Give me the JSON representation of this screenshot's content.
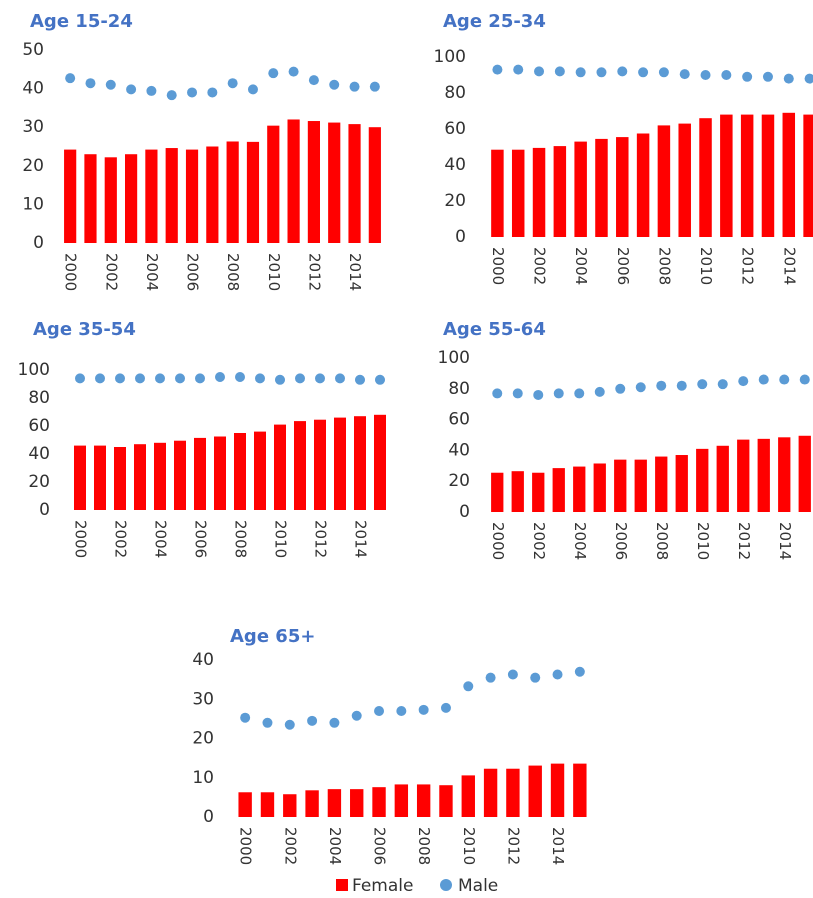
{
  "chart_data": [
    {
      "type": "bar_dot",
      "title": "Age 15-24",
      "categories": [
        "2000",
        null,
        "2002",
        null,
        "2004",
        null,
        "2006",
        null,
        "2008",
        null,
        "2010",
        null,
        "2012",
        null,
        "2014",
        null
      ],
      "series": [
        {
          "color": "#ff0000",
          "values": [
            24.2,
            23,
            22.2,
            23,
            24.2,
            24.6,
            24.2,
            25,
            26.3,
            26.2,
            30.4,
            32,
            31.6,
            31.2,
            30.8,
            30.0
          ]
        },
        {
          "color": "#5b9bd5",
          "values": [
            42.7,
            41.4,
            41,
            39.8,
            39.4,
            38.3,
            39,
            39,
            41.4,
            39.8,
            44,
            44.4,
            42.2,
            41,
            40.5,
            40.5
          ]
        }
      ],
      "ylim": [
        0,
        50
      ],
      "yticks": [
        0,
        10,
        20,
        30,
        40,
        50
      ]
    },
    {
      "type": "bar_dot",
      "title": "Age 25-34",
      "categories": [
        "2000",
        null,
        "2002",
        null,
        "2004",
        null,
        "2006",
        null,
        "2008",
        null,
        "2010",
        null,
        "2012",
        null,
        "2014",
        null
      ],
      "series": [
        {
          "color": "#ff0000",
          "values": [
            48.5,
            48.5,
            49.5,
            50.5,
            53,
            54.5,
            55.5,
            57.5,
            62,
            63,
            66,
            68,
            68,
            68,
            69,
            68
          ]
        },
        {
          "color": "#5b9bd5",
          "values": [
            93,
            93,
            92,
            92,
            91.5,
            91.5,
            92,
            91.5,
            91.5,
            90.5,
            90,
            90,
            89,
            89,
            88,
            88
          ]
        }
      ],
      "ylim": [
        0,
        100
      ],
      "yticks": [
        0,
        20,
        40,
        60,
        80,
        100
      ]
    },
    {
      "type": "bar_dot",
      "title": "Age 35-54",
      "categories": [
        "2000",
        null,
        "2002",
        null,
        "2004",
        null,
        "2006",
        null,
        "2008",
        null,
        "2010",
        null,
        "2012",
        null,
        "2014",
        null
      ],
      "series": [
        {
          "color": "#ff0000",
          "values": [
            46,
            46,
            45,
            47,
            48,
            49.5,
            51.5,
            52.5,
            55,
            56,
            61,
            63.5,
            64.5,
            66,
            67,
            68
          ]
        },
        {
          "color": "#5b9bd5",
          "values": [
            94,
            94,
            94,
            94,
            94,
            94,
            94,
            95,
            95,
            94,
            93,
            94,
            94,
            94,
            93,
            93
          ]
        }
      ],
      "ylim": [
        0,
        100
      ],
      "yticks": [
        0,
        20,
        40,
        60,
        80,
        100
      ]
    },
    {
      "type": "bar_dot",
      "title": "Age 55-64",
      "categories": [
        "2000",
        null,
        "2002",
        null,
        "2004",
        null,
        "2006",
        null,
        "2008",
        null,
        "2010",
        null,
        "2012",
        null,
        "2014",
        null
      ],
      "series": [
        {
          "color": "#ff0000",
          "values": [
            25.5,
            26.5,
            25.5,
            28.5,
            29.5,
            31.5,
            34,
            34,
            36,
            37,
            41,
            43,
            47,
            47.5,
            48.5,
            49.5
          ]
        },
        {
          "color": "#5b9bd5",
          "values": [
            77,
            77,
            76,
            77,
            77,
            78,
            80,
            81,
            82,
            82,
            83,
            83,
            85,
            86,
            86,
            86
          ]
        }
      ],
      "ylim": [
        0,
        100
      ],
      "yticks": [
        0,
        20,
        40,
        60,
        80,
        100
      ]
    },
    {
      "type": "bar_dot",
      "title": "Age 65+",
      "categories": [
        "2000",
        null,
        "2002",
        null,
        "2004",
        null,
        "2006",
        null,
        "2008",
        null,
        "2010",
        null,
        "2012",
        null,
        "2014",
        null
      ],
      "series": [
        {
          "name": "Female",
          "color": "#ff0000",
          "values": [
            6.3,
            6.3,
            5.8,
            6.8,
            7.1,
            7.1,
            7.6,
            8.3,
            8.3,
            8.1,
            10.6,
            12.3,
            12.3,
            13.1,
            13.6,
            13.6
          ]
        },
        {
          "name": "Male",
          "color": "#5b9bd5",
          "values": [
            25.3,
            24,
            23.5,
            24.5,
            24,
            25.8,
            27,
            27,
            27.3,
            27.8,
            33.3,
            35.5,
            36.3,
            35.5,
            36.3,
            37
          ]
        }
      ],
      "ylim": [
        0,
        40
      ],
      "yticks": [
        0,
        10,
        20,
        30,
        40
      ]
    }
  ]
}
